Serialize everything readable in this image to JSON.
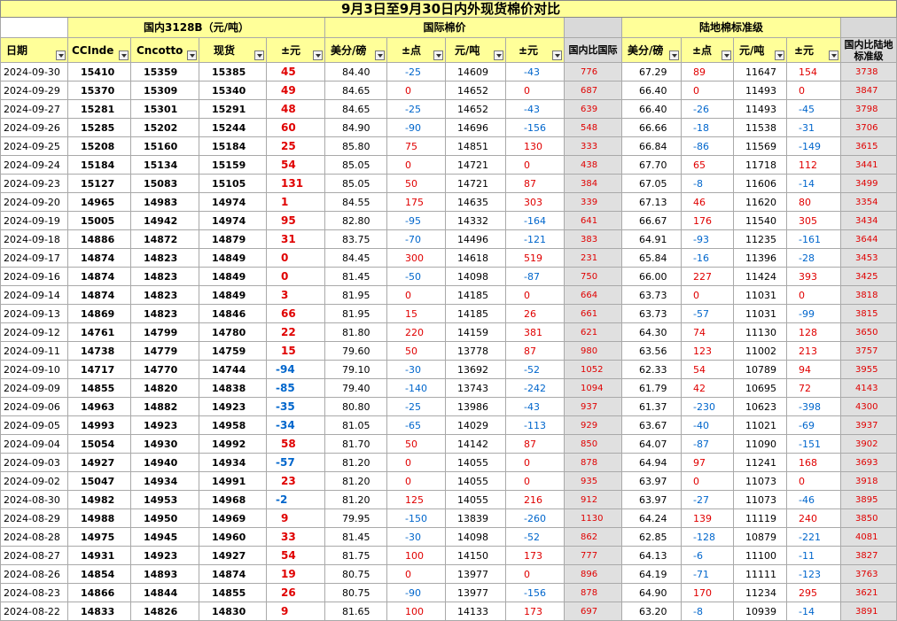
{
  "title": "9月3日至9月30日内外现货棉价对比",
  "groups": {
    "domestic": "国内3128B（元/吨）",
    "international": "国际棉价",
    "land": "陆地棉标准级"
  },
  "headers": {
    "date": "日期",
    "ccindex": "CCInde",
    "cncotton": "Cncotto",
    "spot": "现货",
    "diff_yuan": "±元",
    "intl_cents": "美分/磅",
    "intl_points": "±点",
    "intl_yuan": "元/吨",
    "intl_diff": "±元",
    "dom_vs_intl": "国内比国际",
    "land_cents": "美分/磅",
    "land_points": "±点",
    "land_yuan": "元/吨",
    "land_diff": "±元",
    "dom_vs_land": "国内比陆地标准级"
  },
  "colors": {
    "title_bg": "#ffff99",
    "group_bg": "#ffff99",
    "gray_col": "#d9d9d9",
    "positive": "#e00000",
    "negative": "#0066cc"
  },
  "rows": [
    [
      "2024-09-30",
      "15410",
      "15359",
      "15385",
      "45",
      "84.40",
      "-25",
      "14609",
      "-43",
      "776",
      "67.29",
      "89",
      "11647",
      "154",
      "3738"
    ],
    [
      "2024-09-29",
      "15370",
      "15309",
      "15340",
      "49",
      "84.65",
      "0",
      "14652",
      "0",
      "687",
      "66.40",
      "0",
      "11493",
      "0",
      "3847"
    ],
    [
      "2024-09-27",
      "15281",
      "15301",
      "15291",
      "48",
      "84.65",
      "-25",
      "14652",
      "-43",
      "639",
      "66.40",
      "-26",
      "11493",
      "-45",
      "3798"
    ],
    [
      "2024-09-26",
      "15285",
      "15202",
      "15244",
      "60",
      "84.90",
      "-90",
      "14696",
      "-156",
      "548",
      "66.66",
      "-18",
      "11538",
      "-31",
      "3706"
    ],
    [
      "2024-09-25",
      "15208",
      "15160",
      "15184",
      "25",
      "85.80",
      "75",
      "14851",
      "130",
      "333",
      "66.84",
      "-86",
      "11569",
      "-149",
      "3615"
    ],
    [
      "2024-09-24",
      "15184",
      "15134",
      "15159",
      "54",
      "85.05",
      "0",
      "14721",
      "0",
      "438",
      "67.70",
      "65",
      "11718",
      "112",
      "3441"
    ],
    [
      "2024-09-23",
      "15127",
      "15083",
      "15105",
      "131",
      "85.05",
      "50",
      "14721",
      "87",
      "384",
      "67.05",
      "-8",
      "11606",
      "-14",
      "3499"
    ],
    [
      "2024-09-20",
      "14965",
      "14983",
      "14974",
      "1",
      "84.55",
      "175",
      "14635",
      "303",
      "339",
      "67.13",
      "46",
      "11620",
      "80",
      "3354"
    ],
    [
      "2024-09-19",
      "15005",
      "14942",
      "14974",
      "95",
      "82.80",
      "-95",
      "14332",
      "-164",
      "641",
      "66.67",
      "176",
      "11540",
      "305",
      "3434"
    ],
    [
      "2024-09-18",
      "14886",
      "14872",
      "14879",
      "31",
      "83.75",
      "-70",
      "14496",
      "-121",
      "383",
      "64.91",
      "-93",
      "11235",
      "-161",
      "3644"
    ],
    [
      "2024-09-17",
      "14874",
      "14823",
      "14849",
      "0",
      "84.45",
      "300",
      "14618",
      "519",
      "231",
      "65.84",
      "-16",
      "11396",
      "-28",
      "3453"
    ],
    [
      "2024-09-16",
      "14874",
      "14823",
      "14849",
      "0",
      "81.45",
      "-50",
      "14098",
      "-87",
      "750",
      "66.00",
      "227",
      "11424",
      "393",
      "3425"
    ],
    [
      "2024-09-14",
      "14874",
      "14823",
      "14849",
      "3",
      "81.95",
      "0",
      "14185",
      "0",
      "664",
      "63.73",
      "0",
      "11031",
      "0",
      "3818"
    ],
    [
      "2024-09-13",
      "14869",
      "14823",
      "14846",
      "66",
      "81.95",
      "15",
      "14185",
      "26",
      "661",
      "63.73",
      "-57",
      "11031",
      "-99",
      "3815"
    ],
    [
      "2024-09-12",
      "14761",
      "14799",
      "14780",
      "22",
      "81.80",
      "220",
      "14159",
      "381",
      "621",
      "64.30",
      "74",
      "11130",
      "128",
      "3650"
    ],
    [
      "2024-09-11",
      "14738",
      "14779",
      "14759",
      "15",
      "79.60",
      "50",
      "13778",
      "87",
      "980",
      "63.56",
      "123",
      "11002",
      "213",
      "3757"
    ],
    [
      "2024-09-10",
      "14717",
      "14770",
      "14744",
      "-94",
      "79.10",
      "-30",
      "13692",
      "-52",
      "1052",
      "62.33",
      "54",
      "10789",
      "94",
      "3955"
    ],
    [
      "2024-09-09",
      "14855",
      "14820",
      "14838",
      "-85",
      "79.40",
      "-140",
      "13743",
      "-242",
      "1094",
      "61.79",
      "42",
      "10695",
      "72",
      "4143"
    ],
    [
      "2024-09-06",
      "14963",
      "14882",
      "14923",
      "-35",
      "80.80",
      "-25",
      "13986",
      "-43",
      "937",
      "61.37",
      "-230",
      "10623",
      "-398",
      "4300"
    ],
    [
      "2024-09-05",
      "14993",
      "14923",
      "14958",
      "-34",
      "81.05",
      "-65",
      "14029",
      "-113",
      "929",
      "63.67",
      "-40",
      "11021",
      "-69",
      "3937"
    ],
    [
      "2024-09-04",
      "15054",
      "14930",
      "14992",
      "58",
      "81.70",
      "50",
      "14142",
      "87",
      "850",
      "64.07",
      "-87",
      "11090",
      "-151",
      "3902"
    ],
    [
      "2024-09-03",
      "14927",
      "14940",
      "14934",
      "-57",
      "81.20",
      "0",
      "14055",
      "0",
      "878",
      "64.94",
      "97",
      "11241",
      "168",
      "3693"
    ],
    [
      "2024-09-02",
      "15047",
      "14934",
      "14991",
      "23",
      "81.20",
      "0",
      "14055",
      "0",
      "935",
      "63.97",
      "0",
      "11073",
      "0",
      "3918"
    ],
    [
      "2024-08-30",
      "14982",
      "14953",
      "14968",
      "-2",
      "81.20",
      "125",
      "14055",
      "216",
      "912",
      "63.97",
      "-27",
      "11073",
      "-46",
      "3895"
    ],
    [
      "2024-08-29",
      "14988",
      "14950",
      "14969",
      "9",
      "79.95",
      "-150",
      "13839",
      "-260",
      "1130",
      "64.24",
      "139",
      "11119",
      "240",
      "3850"
    ],
    [
      "2024-08-28",
      "14975",
      "14945",
      "14960",
      "33",
      "81.45",
      "-30",
      "14098",
      "-52",
      "862",
      "62.85",
      "-128",
      "10879",
      "-221",
      "4081"
    ],
    [
      "2024-08-27",
      "14931",
      "14923",
      "14927",
      "54",
      "81.75",
      "100",
      "14150",
      "173",
      "777",
      "64.13",
      "-6",
      "11100",
      "-11",
      "3827"
    ],
    [
      "2024-08-26",
      "14854",
      "14893",
      "14874",
      "19",
      "80.75",
      "0",
      "13977",
      "0",
      "896",
      "64.19",
      "-71",
      "11111",
      "-123",
      "3763"
    ],
    [
      "2024-08-23",
      "14866",
      "14844",
      "14855",
      "26",
      "80.75",
      "-90",
      "13977",
      "-156",
      "878",
      "64.90",
      "170",
      "11234",
      "295",
      "3621"
    ],
    [
      "2024-08-22",
      "14833",
      "14826",
      "14830",
      "9",
      "81.65",
      "100",
      "14133",
      "173",
      "697",
      "63.20",
      "-8",
      "10939",
      "-14",
      "3891"
    ]
  ]
}
